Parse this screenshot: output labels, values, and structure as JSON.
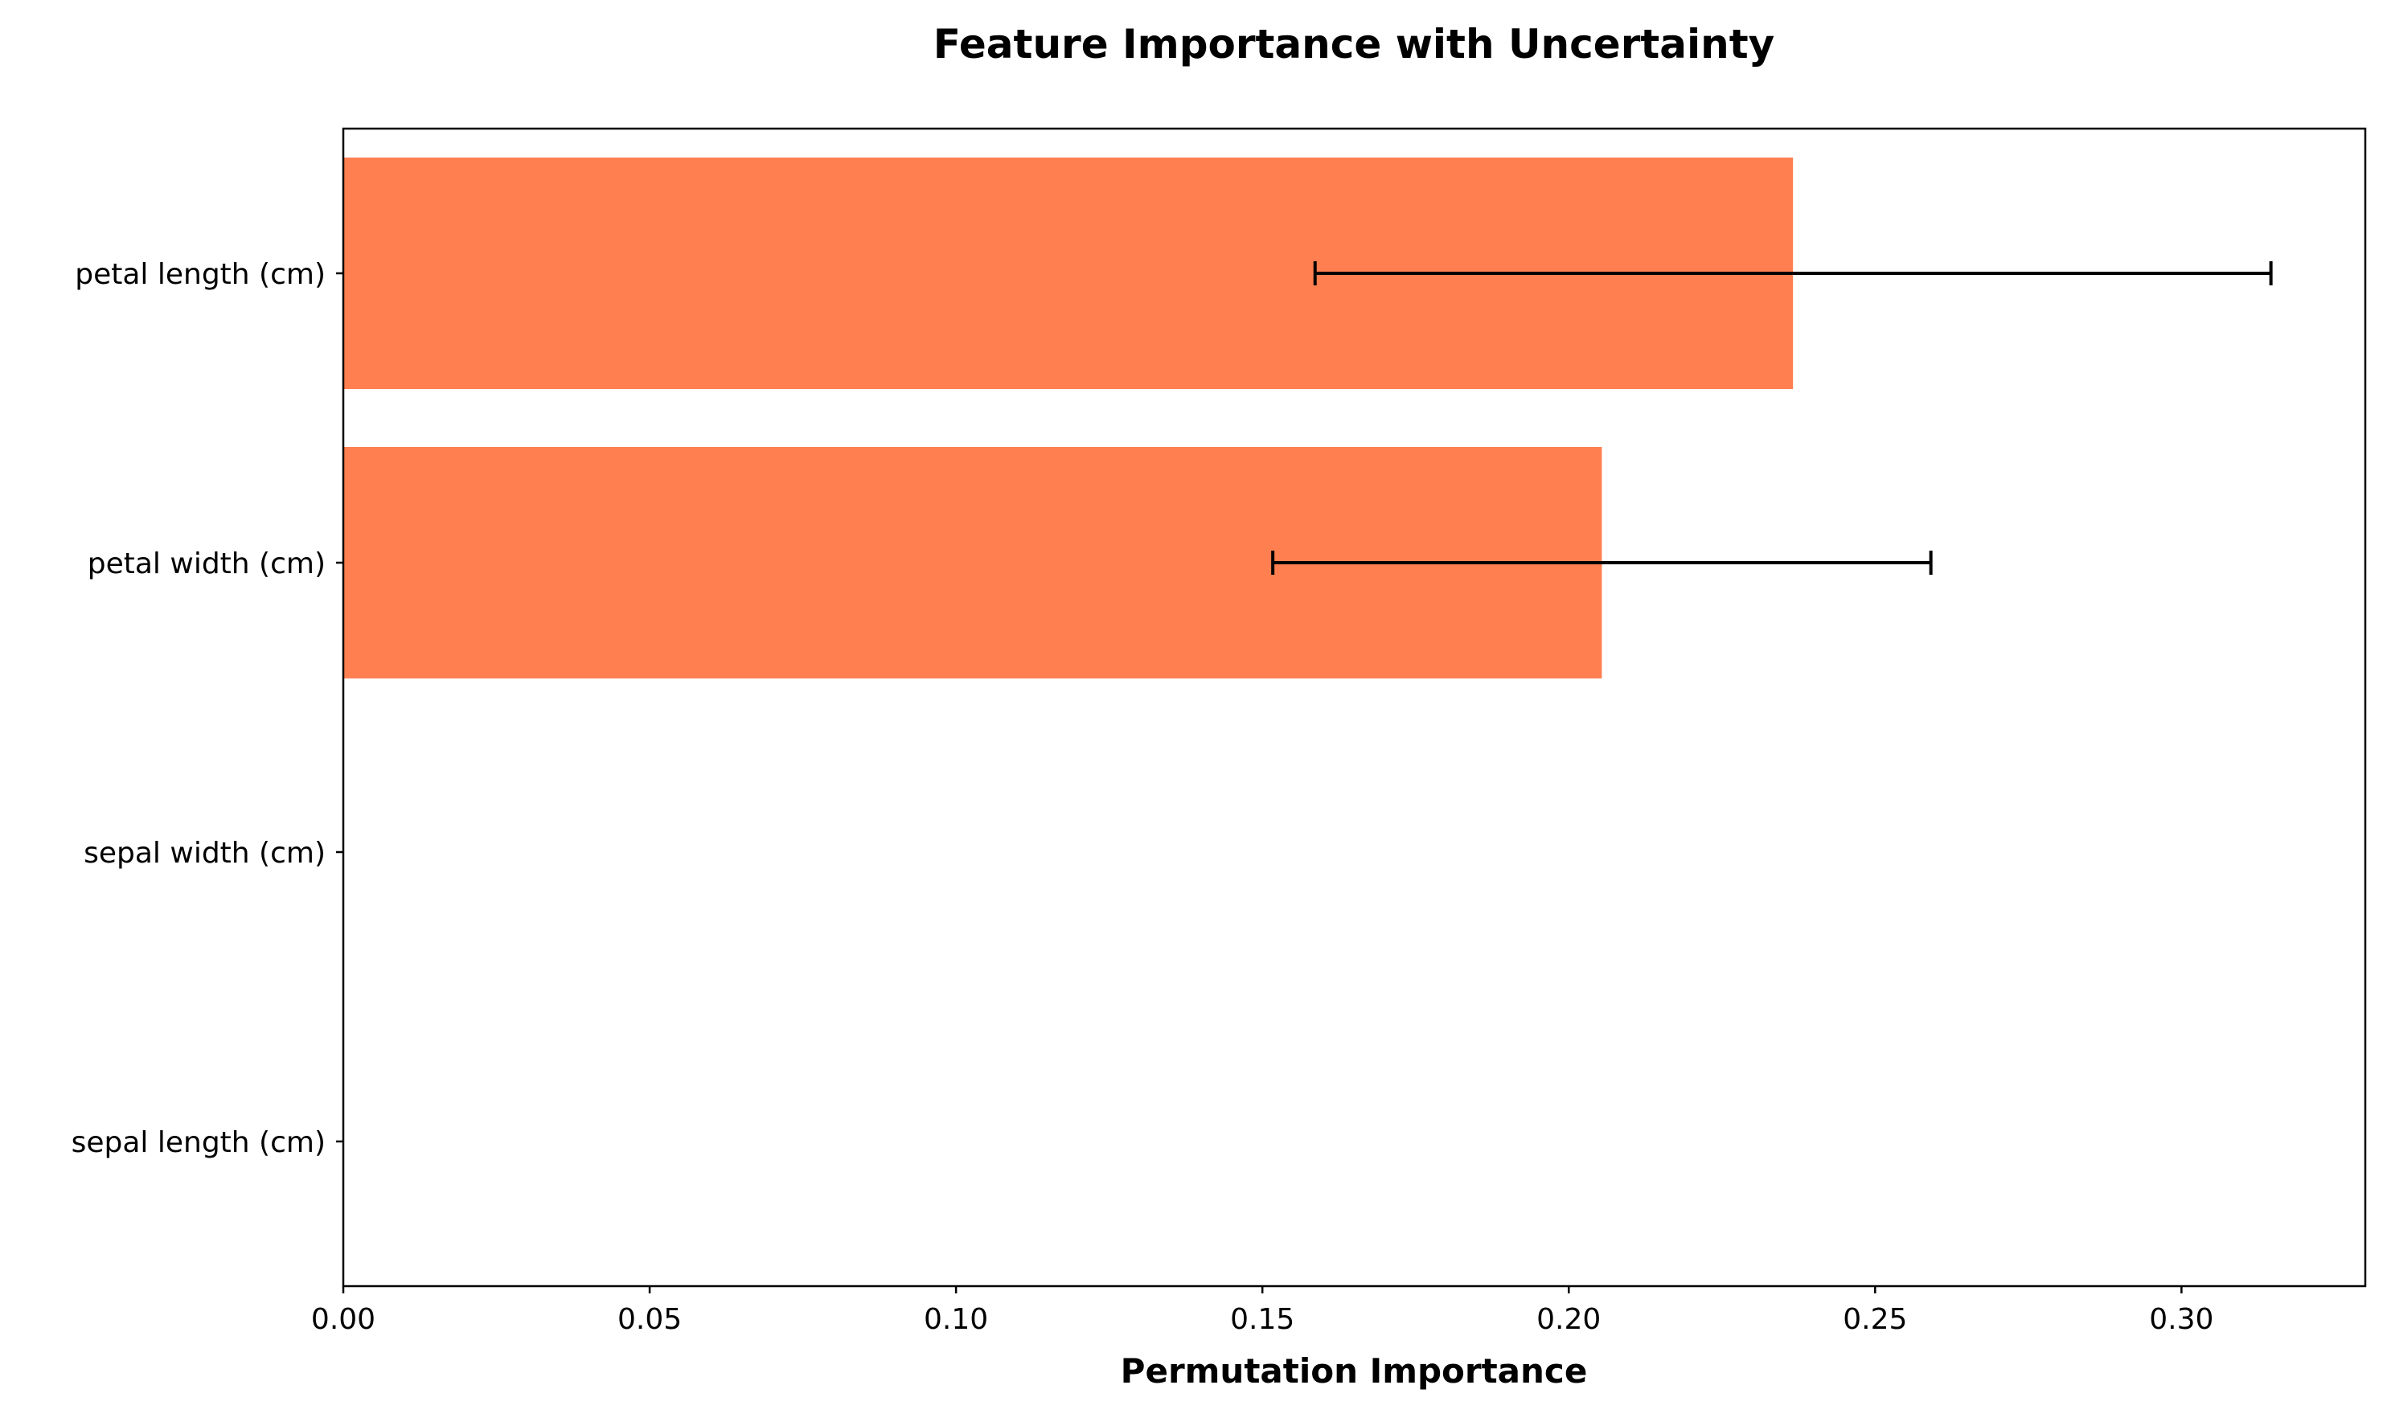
{
  "chart_data": {
    "type": "bar",
    "orientation": "horizontal",
    "title": "Feature Importance with Uncertainty",
    "xlabel": "Permutation Importance",
    "ylabel": "",
    "categories": [
      "petal length (cm)",
      "petal width (cm)",
      "sepal width (cm)",
      "sepal length (cm)"
    ],
    "values": [
      0.2366,
      0.2054,
      0.0,
      0.0
    ],
    "errors": [
      0.078,
      0.0537,
      0.0,
      0.0
    ],
    "xlim": [
      0.0,
      0.33
    ],
    "xticks": [
      "0.00",
      "0.05",
      "0.10",
      "0.15",
      "0.20",
      "0.25",
      "0.30"
    ],
    "xtick_values": [
      0.0,
      0.05,
      0.1,
      0.15,
      0.2,
      0.25,
      0.3
    ],
    "bar_color": "#ff7f50",
    "error_color": "#000000",
    "grid": false,
    "legend": null
  }
}
